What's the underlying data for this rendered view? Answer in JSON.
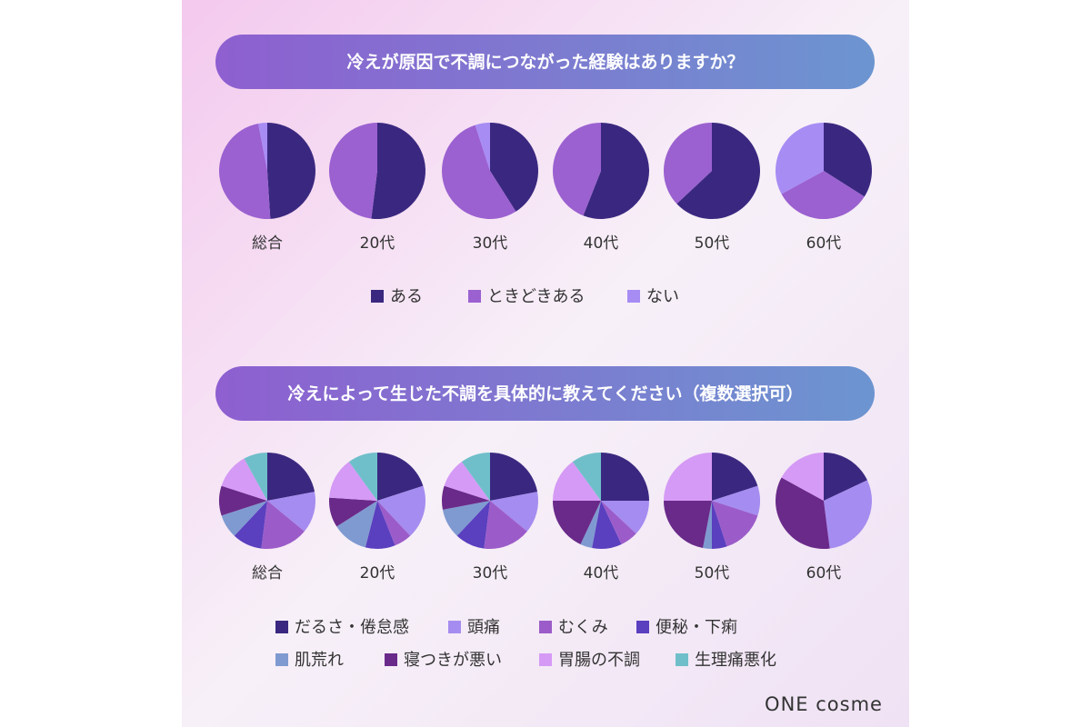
{
  "chart_data": [
    {
      "type": "pie",
      "title": "冷えが原因で不調につながった経験はありますか？",
      "categories": [
        "ある",
        "ときどきある",
        "ない"
      ],
      "colors": [
        "#3a2880",
        "#9b61d0",
        "#a78cf4"
      ],
      "pies": [
        {
          "label": "総合",
          "values": [
            49,
            48,
            3
          ]
        },
        {
          "label": "20代",
          "values": [
            52,
            48,
            0
          ]
        },
        {
          "label": "30代",
          "values": [
            41,
            54,
            5
          ]
        },
        {
          "label": "40代",
          "values": [
            56,
            44,
            0
          ]
        },
        {
          "label": "50代",
          "values": [
            63,
            37,
            0
          ]
        },
        {
          "label": "60代",
          "values": [
            34,
            33,
            33
          ]
        }
      ]
    },
    {
      "type": "pie",
      "title": "冷えによって生じた不調を具体的に教えてください（複数選択可）",
      "categories": [
        "だるさ・倦怠感",
        "頭痛",
        "むくみ",
        "便秘・下痢",
        "肌荒れ",
        "寝つきが悪い",
        "胃腸の不調",
        "生理痛悪化"
      ],
      "colors": [
        "#3a2880",
        "#a58cf0",
        "#9b5cc9",
        "#5a3fbf",
        "#7f9ad0",
        "#6a2a8a",
        "#d59af5",
        "#6fbfca"
      ],
      "pies": [
        {
          "label": "総合",
          "values": [
            22,
            14,
            16,
            10,
            8,
            10,
            12,
            8
          ]
        },
        {
          "label": "20代",
          "values": [
            20,
            18,
            6,
            10,
            12,
            10,
            14,
            10
          ]
        },
        {
          "label": "30代",
          "values": [
            22,
            14,
            16,
            10,
            10,
            8,
            10,
            10
          ]
        },
        {
          "label": "40代",
          "values": [
            25,
            12,
            6,
            10,
            4,
            18,
            15,
            10
          ]
        },
        {
          "label": "50代",
          "values": [
            20,
            10,
            15,
            5,
            3,
            22,
            25,
            0
          ]
        },
        {
          "label": "60代",
          "values": [
            18,
            30,
            0,
            0,
            0,
            35,
            17,
            0
          ]
        }
      ]
    }
  ],
  "brand": "ONE cosme"
}
